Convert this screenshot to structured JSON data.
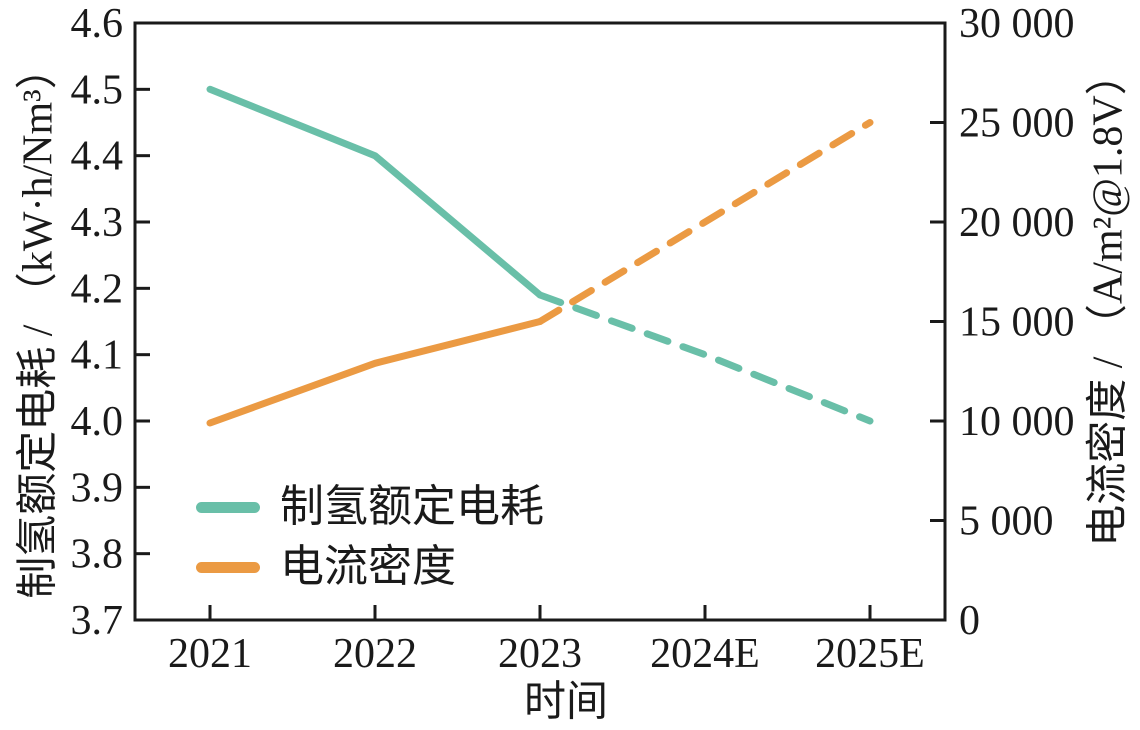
{
  "figure": {
    "background": "#ffffff",
    "text_color": "#1a1a1a",
    "axis_color": "#1a1a1a"
  },
  "chart_data": {
    "type": "line",
    "x_title": "时间",
    "categories": [
      "2021",
      "2022",
      "2023",
      "2024E",
      "2025E"
    ],
    "left_axis": {
      "title": "制氢额定电耗 / （kW·h/Nm³）",
      "min": 3.7,
      "max": 4.6,
      "tick_step": 0.1,
      "tick_labels": [
        "4.6",
        "4.5",
        "4.4",
        "4.3",
        "4.2",
        "4.1",
        "4.0",
        "3.9",
        "3.8",
        "3.7"
      ]
    },
    "right_axis": {
      "title": "电流密度 / （A/m²@1.8V）",
      "min": 0,
      "max": 30000,
      "tick_step": 5000,
      "tick_labels": [
        "30 000",
        "25 000",
        "20 000",
        "15 000",
        "10 000",
        "5 000",
        "0"
      ]
    },
    "series": [
      {
        "name": "制氢额定电耗",
        "axis": "left",
        "color": "#69bfa8",
        "values": [
          4.5,
          4.4,
          4.19,
          4.1,
          4.0
        ],
        "line_style": "solid_then_dashed",
        "dashed_from_index": 2
      },
      {
        "name": "电流密度",
        "axis": "right",
        "color": "#eb9a43",
        "values": [
          9900,
          12900,
          15000,
          20000,
          25000
        ],
        "line_style": "solid_then_dashed",
        "dashed_from_index": 2
      }
    ],
    "legend": {
      "position": "lower-left",
      "entries": [
        "制氢额定电耗",
        "电流密度"
      ]
    },
    "grid": "off"
  }
}
